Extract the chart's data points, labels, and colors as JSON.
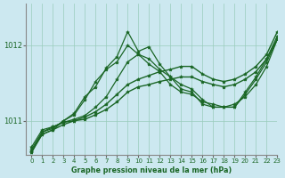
{
  "title": "Graphe pression niveau de la mer (hPa)",
  "background_color": "#cce8f0",
  "grid_color": "#99ccbb",
  "line_color": "#1a6625",
  "xlim": [
    -0.5,
    23
  ],
  "ylim": [
    1010.55,
    1012.55
  ],
  "xticks": [
    0,
    1,
    2,
    3,
    4,
    5,
    6,
    7,
    8,
    9,
    10,
    11,
    12,
    13,
    14,
    15,
    16,
    17,
    18,
    19,
    20,
    21,
    22,
    23
  ],
  "yticks": [
    1011,
    1012
  ],
  "series": [
    {
      "data": [
        1010.65,
        1010.88,
        1010.92,
        1010.98,
        1011.02,
        1011.07,
        1011.18,
        1011.32,
        1011.55,
        1011.78,
        1011.88,
        1011.75,
        1011.65,
        1011.48,
        1011.38,
        1011.35,
        1011.25,
        1011.22,
        1011.18,
        1011.22,
        1011.32,
        1011.48,
        1011.72,
        1012.08
      ],
      "lw": 0.9
    },
    {
      "data": [
        1010.62,
        1010.85,
        1010.9,
        1011.0,
        1011.08,
        1011.28,
        1011.52,
        1011.68,
        1011.78,
        1012.0,
        1011.88,
        1011.82,
        1011.68,
        1011.58,
        1011.42,
        1011.38,
        1011.22,
        1011.18,
        1011.18,
        1011.18,
        1011.35,
        1011.55,
        1011.78,
        1012.08
      ],
      "lw": 0.9
    },
    {
      "data": [
        1010.6,
        1010.82,
        1010.88,
        1011.0,
        1011.1,
        1011.32,
        1011.45,
        1011.7,
        1011.85,
        1012.18,
        1011.92,
        1011.98,
        1011.75,
        1011.58,
        1011.48,
        1011.42,
        1011.28,
        1011.18,
        1011.18,
        1011.18,
        1011.38,
        1011.58,
        1011.82,
        1012.08
      ],
      "lw": 0.9
    },
    {
      "data": [
        1010.58,
        1010.85,
        1010.92,
        1010.98,
        1011.0,
        1011.05,
        1011.12,
        1011.22,
        1011.35,
        1011.48,
        1011.55,
        1011.6,
        1011.65,
        1011.68,
        1011.72,
        1011.72,
        1011.62,
        1011.55,
        1011.52,
        1011.55,
        1011.62,
        1011.72,
        1011.88,
        1012.18
      ],
      "lw": 1.0
    },
    {
      "data": [
        1010.58,
        1010.82,
        1010.88,
        1010.95,
        1011.0,
        1011.02,
        1011.08,
        1011.15,
        1011.25,
        1011.38,
        1011.45,
        1011.48,
        1011.52,
        1011.55,
        1011.58,
        1011.58,
        1011.52,
        1011.48,
        1011.45,
        1011.48,
        1011.55,
        1011.65,
        1011.82,
        1012.12
      ],
      "lw": 1.0
    }
  ]
}
